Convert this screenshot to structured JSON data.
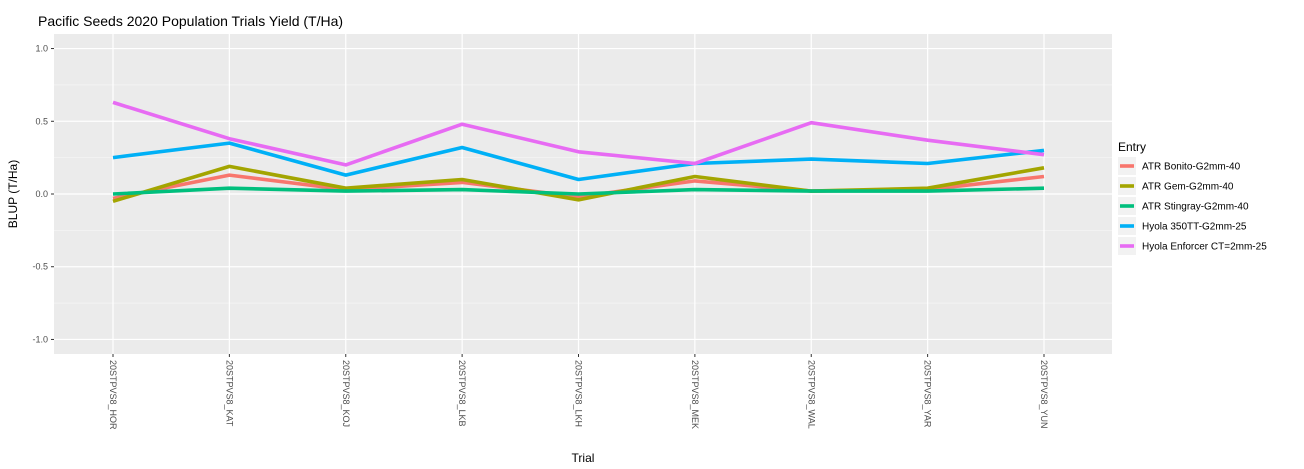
{
  "chart_data": {
    "type": "line",
    "title": "Pacific Seeds 2020 Population Trials Yield (T/Ha)",
    "xlabel": "Trial",
    "ylabel": "BLUP (T/Ha)",
    "ylim": [
      -1.1,
      1.1
    ],
    "y_ticks": [
      "1.0",
      "0.5",
      "0.0",
      "-0.5",
      "-1.0"
    ],
    "y_tick_values": [
      1.0,
      0.5,
      0.0,
      -0.5,
      -1.0
    ],
    "grid": true,
    "legend_position": "right",
    "legend_title": "Entry",
    "categories": [
      "20STPVS8_HOR",
      "20STPVS8_KAT",
      "20STPVS8_KOJ",
      "20STPVS8_LKB",
      "20STPVS8_LKH",
      "20STPVS8_MEK",
      "20STPVS8_WAL",
      "20STPVS8_YAR",
      "20STPVS8_YUN"
    ],
    "series": [
      {
        "name": "ATR Bonito-G2mm-40",
        "color": "#F8766D",
        "values": [
          -0.03,
          0.13,
          0.03,
          0.08,
          -0.02,
          0.09,
          0.02,
          0.03,
          0.12
        ]
      },
      {
        "name": "ATR Gem-G2mm-40",
        "color": "#A3A500",
        "values": [
          -0.05,
          0.19,
          0.04,
          0.1,
          -0.04,
          0.12,
          0.02,
          0.04,
          0.18
        ]
      },
      {
        "name": "ATR Stingray-G2mm-40",
        "color": "#00BF7D",
        "values": [
          0.0,
          0.04,
          0.02,
          0.03,
          0.0,
          0.03,
          0.02,
          0.02,
          0.04
        ]
      },
      {
        "name": "Hyola 350TT-G2mm-25",
        "color": "#00B0F6",
        "values": [
          0.25,
          0.35,
          0.13,
          0.32,
          0.1,
          0.21,
          0.24,
          0.21,
          0.3
        ]
      },
      {
        "name": "Hyola Enforcer CT=2mm-25",
        "color": "#E76BF3",
        "values": [
          0.63,
          0.38,
          0.2,
          0.48,
          0.29,
          0.21,
          0.49,
          0.37,
          0.27
        ]
      }
    ]
  }
}
